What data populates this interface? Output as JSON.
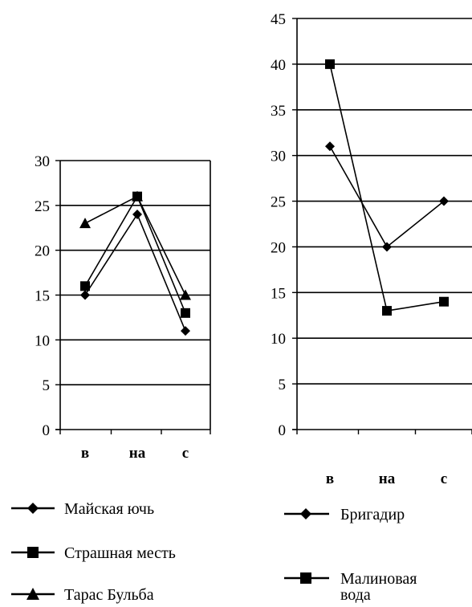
{
  "chart_data": [
    {
      "type": "line",
      "categories": [
        "в",
        "на",
        "с"
      ],
      "ylim": [
        0,
        30
      ],
      "yticks": [
        0,
        5,
        10,
        15,
        20,
        25,
        30
      ],
      "grid": true,
      "legend_placement": "bottom",
      "series": [
        {
          "name": "Майская ючь",
          "marker": "diamond",
          "values": [
            15,
            24,
            11
          ]
        },
        {
          "name": "Страшная месть",
          "marker": "square",
          "values": [
            16,
            26,
            13
          ]
        },
        {
          "name": "Тарас Бульба",
          "marker": "triangle",
          "values": [
            23,
            26,
            15
          ]
        }
      ]
    },
    {
      "type": "line",
      "categories": [
        "в",
        "на",
        "с"
      ],
      "ylim": [
        0,
        45
      ],
      "yticks": [
        0,
        5,
        10,
        15,
        20,
        25,
        30,
        35,
        40,
        45
      ],
      "grid": true,
      "legend_placement": "bottom",
      "series": [
        {
          "name": "Бригадир",
          "marker": "diamond",
          "values": [
            31,
            20,
            25
          ]
        },
        {
          "name": "Малиновая вода",
          "name_lines": [
            "Малиновая",
            "вода"
          ],
          "marker": "square",
          "values": [
            40,
            13,
            14
          ]
        }
      ]
    }
  ]
}
